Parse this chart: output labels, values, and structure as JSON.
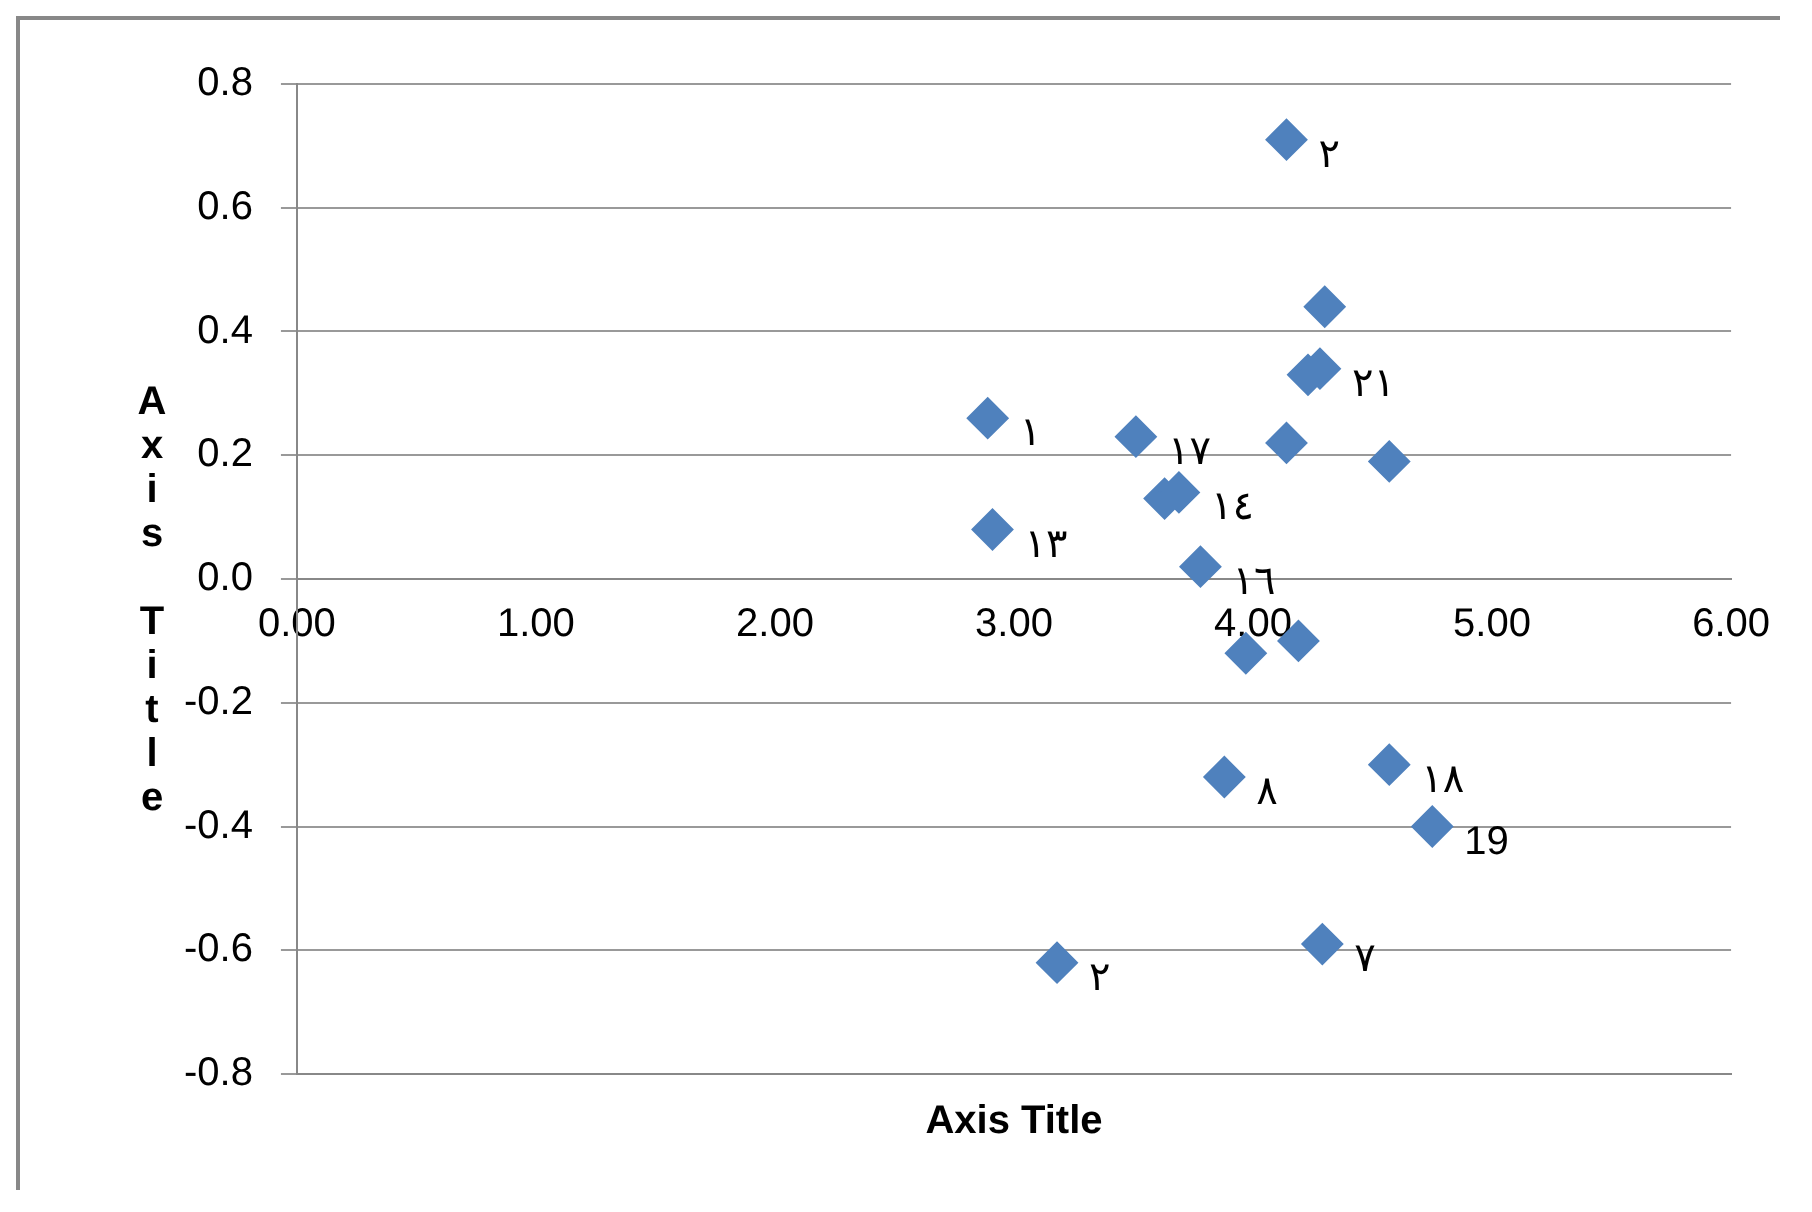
{
  "chart_data": {
    "type": "scatter",
    "xlabel": "Axis Title",
    "ylabel": "Axis Title",
    "series": [
      {
        "color": "#4f81bd",
        "x": [
          2.89,
          2.91,
          3.51,
          3.63,
          3.69,
          3.78,
          3.97,
          4.14,
          4.14,
          4.23,
          4.28,
          4.3,
          4.19,
          3.88,
          4.57,
          4.57,
          4.75,
          4.29,
          3.18
        ],
        "values": [
          0.26,
          0.08,
          0.23,
          0.13,
          0.14,
          0.02,
          -0.12,
          0.71,
          0.22,
          0.33,
          0.34,
          0.44,
          -0.1,
          -0.32,
          0.19,
          -0.3,
          -0.4,
          -0.59,
          -0.62
        ]
      }
    ],
    "value_labels": [
      "١",
      "١٣",
      "١٧",
      null,
      "١٤",
      "١٦",
      null,
      "٢",
      null,
      null,
      "٢١",
      null,
      null,
      "٨",
      null,
      "١٨",
      "19",
      "٧",
      "٢"
    ],
    "xlim": [
      0,
      6
    ],
    "xticks": [
      {
        "value": 0,
        "label": "0.00"
      },
      {
        "value": 1,
        "label": "1.00"
      },
      {
        "value": 2,
        "label": "2.00"
      },
      {
        "value": 3,
        "label": "3.00"
      },
      {
        "value": 4,
        "label": "4.00"
      },
      {
        "value": 5,
        "label": "5.00"
      },
      {
        "value": 6,
        "label": "6.00"
      }
    ],
    "ylim": [
      -0.8,
      0.8
    ],
    "yticks": [
      {
        "value": -0.8,
        "label": "-0.8"
      },
      {
        "value": -0.6,
        "label": "-0.6"
      },
      {
        "value": -0.4,
        "label": "-0.4"
      },
      {
        "value": -0.2,
        "label": "-0.2"
      },
      {
        "value": 0,
        "label": "0.0"
      },
      {
        "value": 0.2,
        "label": "0.2"
      },
      {
        "value": 0.4,
        "label": "0.4"
      },
      {
        "value": 0.6,
        "label": "0.6"
      },
      {
        "value": 0.8,
        "label": "0.8"
      }
    ],
    "grid": "y",
    "marker": "diamond",
    "legend": false
  }
}
